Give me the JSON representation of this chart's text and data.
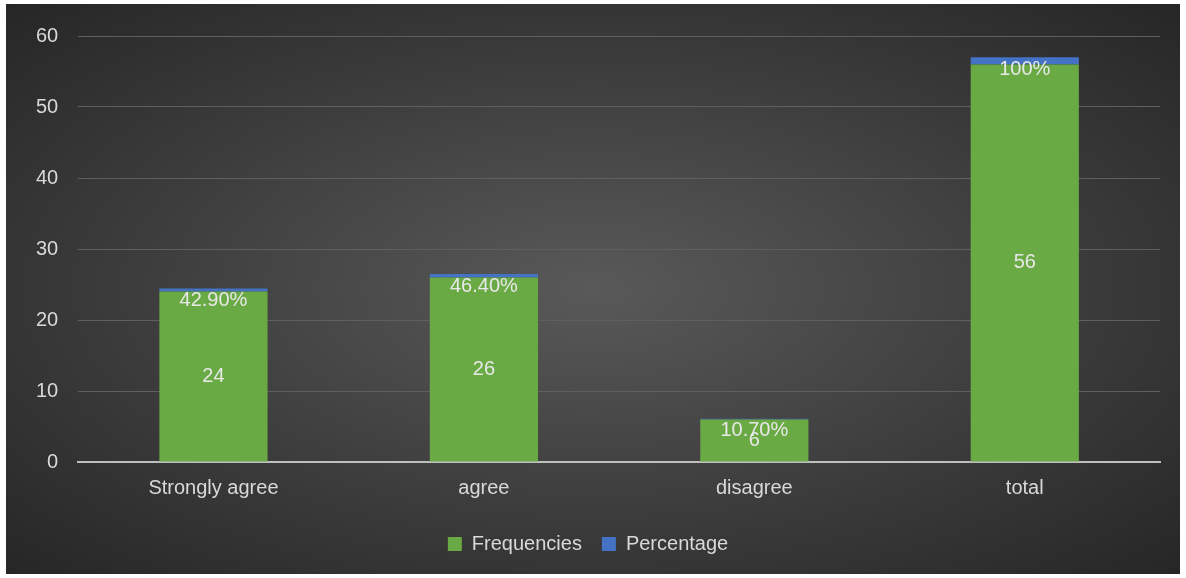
{
  "chart_data": {
    "type": "bar",
    "stacked": true,
    "categories": [
      "Strongly agree",
      "agree",
      "disagree",
      "total"
    ],
    "series": [
      {
        "name": "Frequencies",
        "color": "#6aaa44",
        "values": [
          24,
          26,
          6,
          56
        ],
        "value_labels": [
          "24",
          "26",
          "6",
          "56"
        ]
      },
      {
        "name": "Percentage",
        "color": "#4472c4",
        "values": [
          0.429,
          0.464,
          0.107,
          1
        ],
        "value_labels": [
          "42.90%",
          "46.40%",
          "10.70%",
          "100%"
        ]
      }
    ],
    "ylim": [
      0,
      60
    ],
    "yticks": [
      0,
      10,
      20,
      30,
      40,
      50,
      60
    ],
    "grid": "y",
    "legend": "bottom"
  }
}
